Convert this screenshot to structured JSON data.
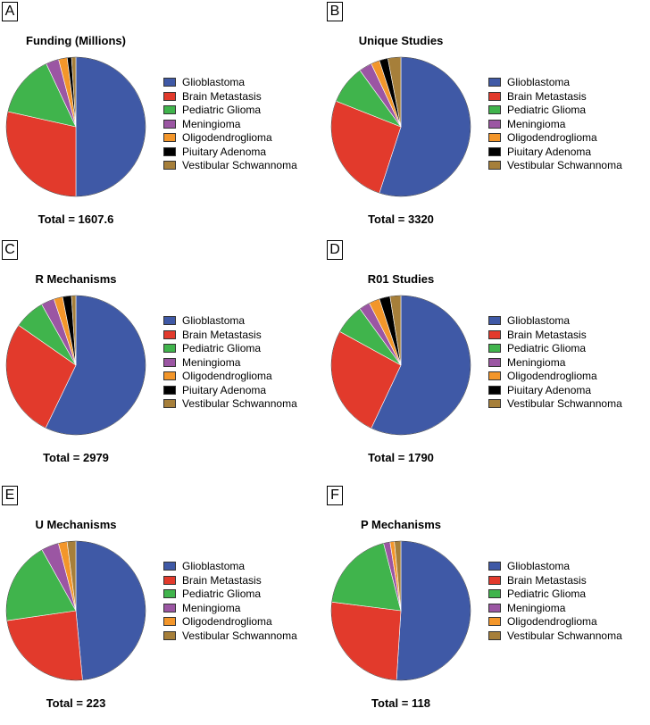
{
  "colors": {
    "Glioblastoma": "#3f59a6",
    "Brain Metastasis": "#e23a2c",
    "Pediatric Glioma": "#40b44c",
    "Meningioma": "#9b56a3",
    "Oligodendroglioma": "#f3962a",
    "Piuitary Adenoma": "#000000",
    "Vestibular Schwannoma": "#a67f3a"
  },
  "chart_data": [
    {
      "type": "pie",
      "panel": "A",
      "title": "Funding (Millions)",
      "total_label": "Total = 1607.6",
      "legend": [
        "Glioblastoma",
        "Brain Metastasis",
        "Pediatric Glioma",
        "Meningioma",
        "Oligodendroglioma",
        "Piuitary Adenoma",
        "Vestibular Schwannoma"
      ],
      "values": [
        0.5,
        0.285,
        0.145,
        0.03,
        0.02,
        0.01,
        0.01
      ]
    },
    {
      "type": "pie",
      "panel": "B",
      "title": "Unique Studies",
      "total_label": "Total = 3320",
      "legend": [
        "Glioblastoma",
        "Brain Metastasis",
        "Pediatric Glioma",
        "Meningioma",
        "Oligodendroglioma",
        "Piuitary Adenoma",
        "Vestibular Schwannoma"
      ],
      "values": [
        0.55,
        0.26,
        0.09,
        0.03,
        0.02,
        0.02,
        0.03
      ]
    },
    {
      "type": "pie",
      "panel": "C",
      "title": "R Mechanisms",
      "total_label": "Total = 2979",
      "legend": [
        "Glioblastoma",
        "Brain Metastasis",
        "Pediatric Glioma",
        "Meningioma",
        "Oligodendroglioma",
        "Piuitary Adenoma",
        "Vestibular Schwannoma"
      ],
      "values": [
        0.56,
        0.27,
        0.07,
        0.03,
        0.02,
        0.02,
        0.01
      ]
    },
    {
      "type": "pie",
      "panel": "D",
      "title": "R01 Studies",
      "total_label": "Total = 1790",
      "legend": [
        "Glioblastoma",
        "Brain Metastasis",
        "Pediatric Glioma",
        "Meningioma",
        "Oligodendroglioma",
        "Piuitary Adenoma",
        "Vestibular Schwannoma"
      ],
      "values": [
        0.57,
        0.26,
        0.07,
        0.025,
        0.025,
        0.025,
        0.025
      ]
    },
    {
      "type": "pie",
      "panel": "E",
      "title": "U Mechanisms",
      "total_label": "Total = 223",
      "legend": [
        "Glioblastoma",
        "Brain Metastasis",
        "Pediatric Glioma",
        "Meningioma",
        "Oligodendroglioma",
        "Vestibular Schwannoma"
      ],
      "values": [
        0.48,
        0.24,
        0.19,
        0.04,
        0.02,
        0.02
      ]
    },
    {
      "type": "pie",
      "panel": "F",
      "title": "P Mechanisms",
      "total_label": "Total = 118",
      "legend": [
        "Glioblastoma",
        "Brain Metastasis",
        "Pediatric Glioma",
        "Meningioma",
        "Oligodendroglioma",
        "Vestibular Schwannoma"
      ],
      "values": [
        0.51,
        0.26,
        0.19,
        0.015,
        0.01,
        0.015
      ]
    }
  ]
}
